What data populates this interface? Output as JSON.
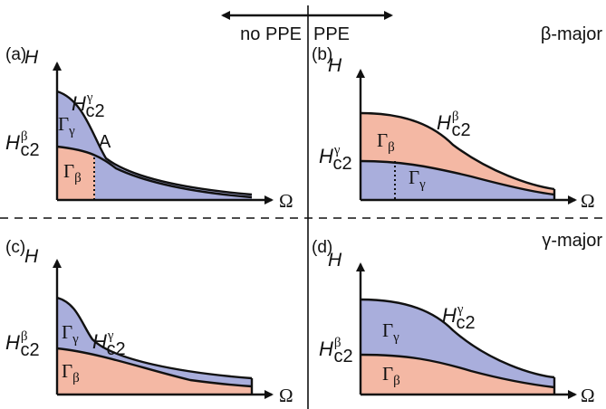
{
  "header": {
    "left_label": "no PPE",
    "right_label": "PPE",
    "top_right_label": "β-major",
    "bottom_right_label": "γ-major"
  },
  "panels": [
    {
      "id": "a",
      "label": "(a)",
      "y_axis": "H",
      "x_axis": "Ω",
      "upper_curve": "γ",
      "lower_curve": "β",
      "upper_region": "γ",
      "lower_region": "β",
      "crossing_point": "A"
    },
    {
      "id": "b",
      "label": "(b)",
      "y_axis": "H",
      "x_axis": "Ω",
      "upper_curve": "β",
      "lower_curve": "γ",
      "upper_region": "β",
      "lower_region": "γ"
    },
    {
      "id": "c",
      "label": "(c)",
      "y_axis": "H",
      "x_axis": "Ω",
      "upper_curve": "γ",
      "lower_curve": "β",
      "upper_region": "γ",
      "lower_region": "β"
    },
    {
      "id": "d",
      "label": "(d)",
      "y_axis": "H",
      "x_axis": "Ω",
      "upper_curve": "γ",
      "lower_curve": "β",
      "upper_region": "γ",
      "lower_region": "β"
    }
  ],
  "notation": {
    "H": "H",
    "c2": "c2",
    "Gamma": "Γ"
  },
  "colors": {
    "beta_fill": "#f4b8a4",
    "gamma_fill": "#a9aedc",
    "ink": "#111111"
  }
}
